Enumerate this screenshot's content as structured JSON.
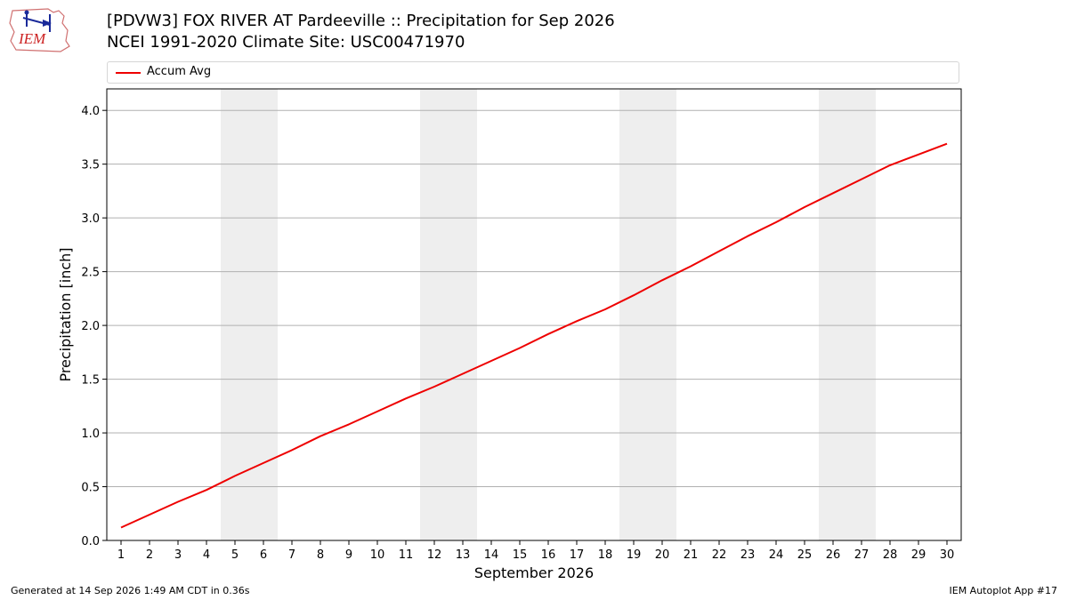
{
  "header": {
    "title_line1": "[PDVW3] FOX RIVER  AT Pardeeville :: Precipitation for Sep 2026",
    "title_line2": "NCEI 1991-2020 Climate Site: USC00471970",
    "logo_text": "IEM"
  },
  "legend": {
    "position": "top",
    "items": [
      {
        "label": "Accum Avg",
        "color": "#ee0000"
      }
    ]
  },
  "footer": {
    "left": "Generated at 14 Sep 2026 1:49 AM CDT in 0.36s",
    "right": "IEM Autoplot App #17"
  },
  "chart_data": {
    "type": "line",
    "title": "[PDVW3] FOX RIVER  AT Pardeeville :: Precipitation for Sep 2026",
    "subtitle": "NCEI 1991-2020 Climate Site: USC00471970",
    "xlabel": "September 2026",
    "ylabel": "Precipitation [inch]",
    "x": [
      1,
      2,
      3,
      4,
      5,
      6,
      7,
      8,
      9,
      10,
      11,
      12,
      13,
      14,
      15,
      16,
      17,
      18,
      19,
      20,
      21,
      22,
      23,
      24,
      25,
      26,
      27,
      28,
      29,
      30
    ],
    "xlim": [
      0.5,
      30.5
    ],
    "ylim": [
      0,
      4.2
    ],
    "yticks": [
      0.0,
      0.5,
      1.0,
      1.5,
      2.0,
      2.5,
      3.0,
      3.5,
      4.0
    ],
    "ytick_labels": [
      "0.0",
      "0.5",
      "1.0",
      "1.5",
      "2.0",
      "2.5",
      "3.0",
      "3.5",
      "4.0"
    ],
    "grid": {
      "y": true,
      "x": false
    },
    "weekend_shading": [
      [
        4.5,
        6.5
      ],
      [
        11.5,
        13.5
      ],
      [
        18.5,
        20.5
      ],
      [
        25.5,
        27.5
      ]
    ],
    "shade_color": "#eeeeee",
    "series": [
      {
        "name": "Accum Avg",
        "color": "#ee0000",
        "values": [
          0.12,
          0.24,
          0.36,
          0.47,
          0.6,
          0.72,
          0.84,
          0.97,
          1.08,
          1.2,
          1.32,
          1.43,
          1.55,
          1.67,
          1.79,
          1.92,
          2.04,
          2.15,
          2.28,
          2.42,
          2.55,
          2.69,
          2.83,
          2.96,
          3.1,
          3.23,
          3.36,
          3.49,
          3.59,
          3.69
        ]
      }
    ]
  }
}
